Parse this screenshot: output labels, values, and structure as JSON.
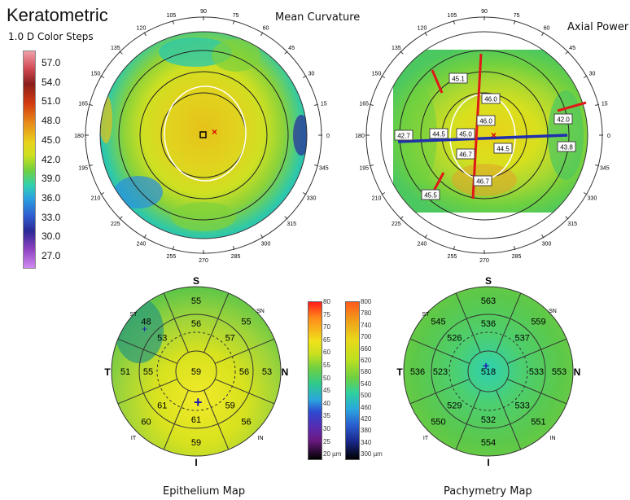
{
  "header": {
    "title": "Keratometric",
    "subtitle": "1.0 D Color Steps"
  },
  "colors": {
    "keratometric_scale": [
      "#e98a95",
      "#c7434d",
      "#8a1e1c",
      "#cf3b12",
      "#e77a1a",
      "#e6c21a",
      "#d9e21e",
      "#7fd13a",
      "#2fc98c",
      "#2aa7dd",
      "#2d63d0",
      "#2a2a9a",
      "#8b3fc0",
      "#c67ae8"
    ]
  },
  "kerato_scale": [
    "57.0",
    "54.0",
    "51.0",
    "48.0",
    "45.0",
    "42.0",
    "39.0",
    "36.0",
    "33.0",
    "30.0",
    "27.0"
  ],
  "maps": {
    "mean_curvature": {
      "title": "Mean Curvature",
      "angles": [
        "90",
        "75",
        "60",
        "45",
        "30",
        "15",
        "0",
        "345",
        "330",
        "315",
        "300",
        "285",
        "270",
        "255",
        "240",
        "225",
        "210",
        "195",
        "180",
        "165",
        "150",
        "135",
        "120",
        "105"
      ]
    },
    "axial_power": {
      "title": "Axial Power",
      "angles": [
        "90",
        "75",
        "60",
        "45",
        "30",
        "15",
        "0",
        "345",
        "330",
        "315",
        "300",
        "285",
        "270",
        "255",
        "240",
        "225",
        "210",
        "195",
        "180",
        "165",
        "150",
        "135",
        "120",
        "105"
      ],
      "values": {
        "v451": "45.1",
        "v460": "46.0",
        "v460b": "46.0",
        "v450": "45.0",
        "v445a": "44.5",
        "v427": "42.7",
        "v445b": "44.5",
        "v438": "43.8",
        "v467a": "46.7",
        "v467b": "46.7",
        "v455": "45.5",
        "v420": "42.0"
      }
    },
    "epithelium": {
      "title": "Epithelium Map",
      "labels": {
        "s": "S",
        "i": "I",
        "t": "T",
        "n": "N",
        "st": "ST",
        "sn": "SN",
        "it": "IT",
        "in": "IN"
      },
      "values": {
        "top": "55",
        "st": "48",
        "sn": "55",
        "t_outer": "51",
        "n_outer": "53",
        "it": "60",
        "in": "56",
        "bottom": "59",
        "mid_top": "56",
        "mid_st": "53",
        "mid_sn": "57",
        "mid_t": "55",
        "mid_n": "56",
        "mid_it": "61",
        "mid_in": "59",
        "mid_bottom": "61",
        "center": "59"
      }
    },
    "pachymetry": {
      "title": "Pachymetry Map",
      "labels": {
        "s": "S",
        "i": "I",
        "t": "T",
        "n": "N",
        "st": "ST",
        "sn": "SN",
        "it": "IT",
        "in": "IN"
      },
      "values": {
        "top": "563",
        "st": "545",
        "sn": "559",
        "t_outer": "536",
        "n_outer": "553",
        "it": "550",
        "in": "551",
        "bottom": "554",
        "mid_top": "536",
        "mid_st": "526",
        "mid_sn": "537",
        "mid_t": "523",
        "mid_n": "533",
        "mid_it": "529",
        "mid_in": "533",
        "mid_bottom": "532",
        "center": "518"
      }
    }
  },
  "epi_scale": [
    "80",
    "75",
    "70",
    "65",
    "60",
    "55",
    "50",
    "45",
    "40",
    "35",
    "30",
    "25",
    "20 µm"
  ],
  "pachy_scale": [
    "800",
    "780",
    "740",
    "700",
    "660",
    "620",
    "580",
    "540",
    "500",
    "460",
    "420",
    "380",
    "340",
    "300 µm"
  ]
}
